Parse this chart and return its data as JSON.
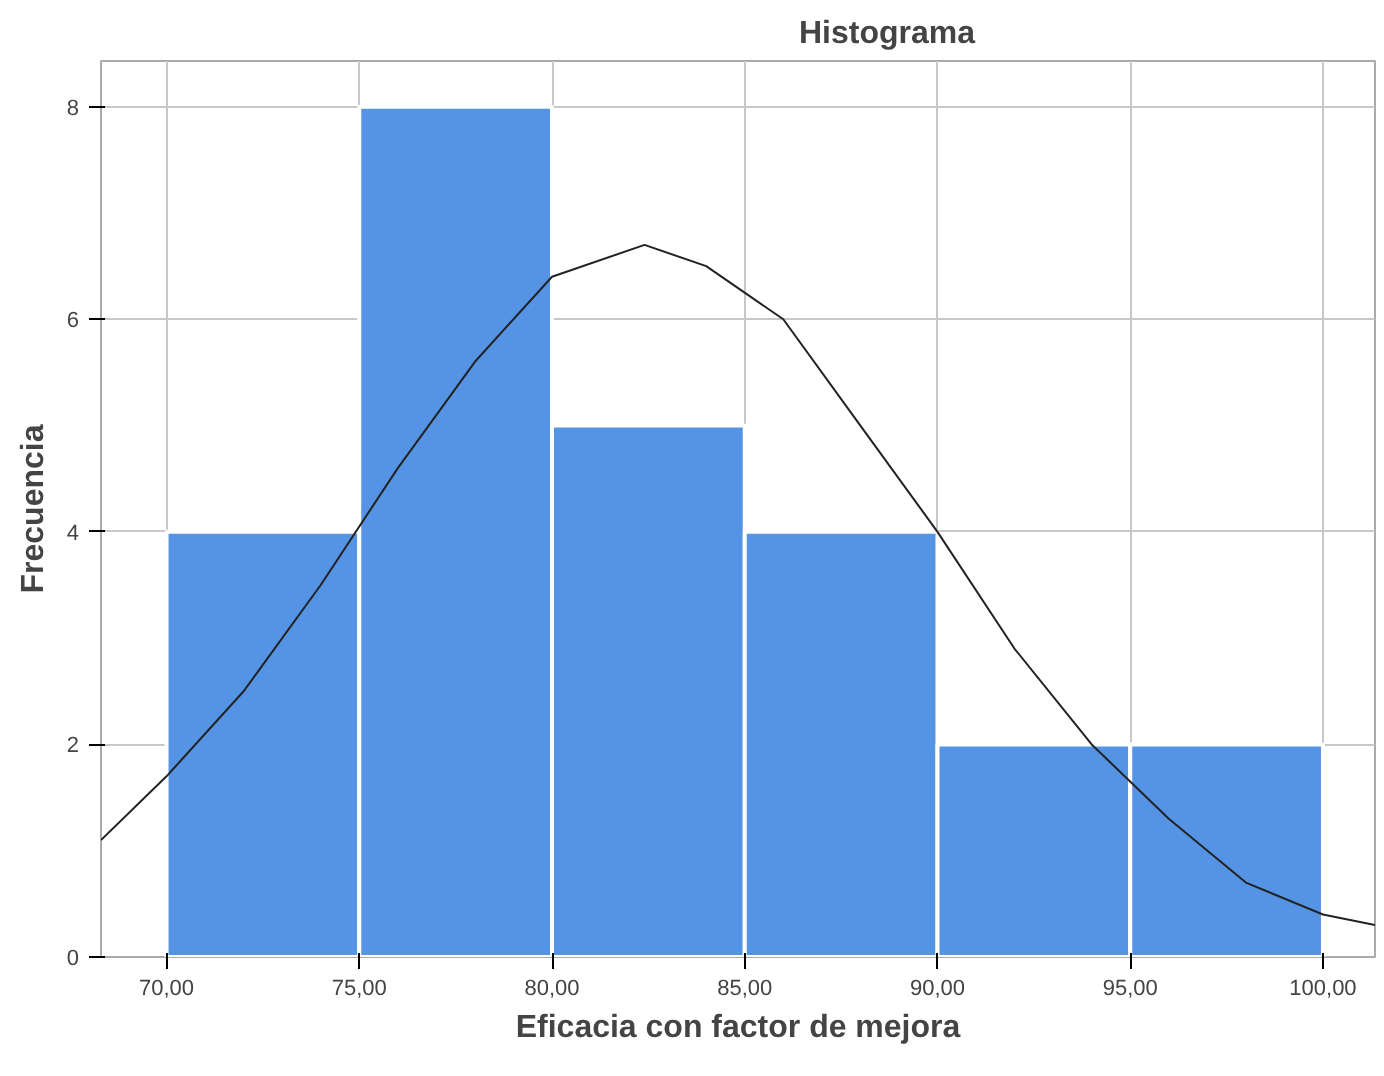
{
  "chart_data": {
    "type": "histogram",
    "title": "Histograma",
    "xlabel": "Eficacia con factor de mejora",
    "ylabel": "Frecuencia",
    "bins": [
      70,
      75,
      80,
      85,
      90,
      95,
      100
    ],
    "values": [
      4,
      8,
      5,
      4,
      2,
      2
    ],
    "color": "#5594e4",
    "series": [
      {
        "type": "line",
        "color": "#222222",
        "x": [
          68.3,
          70,
          72,
          74,
          76,
          78,
          80,
          82.4,
          84,
          86,
          88,
          90,
          92,
          94,
          96,
          98,
          100,
          101.35
        ],
        "values": [
          1.1,
          1.7,
          2.5,
          3.5,
          4.6,
          5.6,
          6.4,
          6.7,
          6.5,
          6.0,
          5.0,
          4.0,
          2.9,
          2.0,
          1.3,
          0.7,
          0.4,
          0.3
        ]
      }
    ],
    "xlim": [
      68.3,
      101.35
    ],
    "ylim": [
      0,
      8.43
    ],
    "xticks": [
      {
        "value": 70,
        "label": "70,00"
      },
      {
        "value": 75,
        "label": "75,00"
      },
      {
        "value": 80,
        "label": "80,00"
      },
      {
        "value": 85,
        "label": "85,00"
      },
      {
        "value": 90,
        "label": "90,00"
      },
      {
        "value": 95,
        "label": "95,00"
      },
      {
        "value": 100,
        "label": "100,00"
      }
    ],
    "yticks": [
      0,
      2,
      4,
      6,
      8
    ],
    "grid": true
  }
}
